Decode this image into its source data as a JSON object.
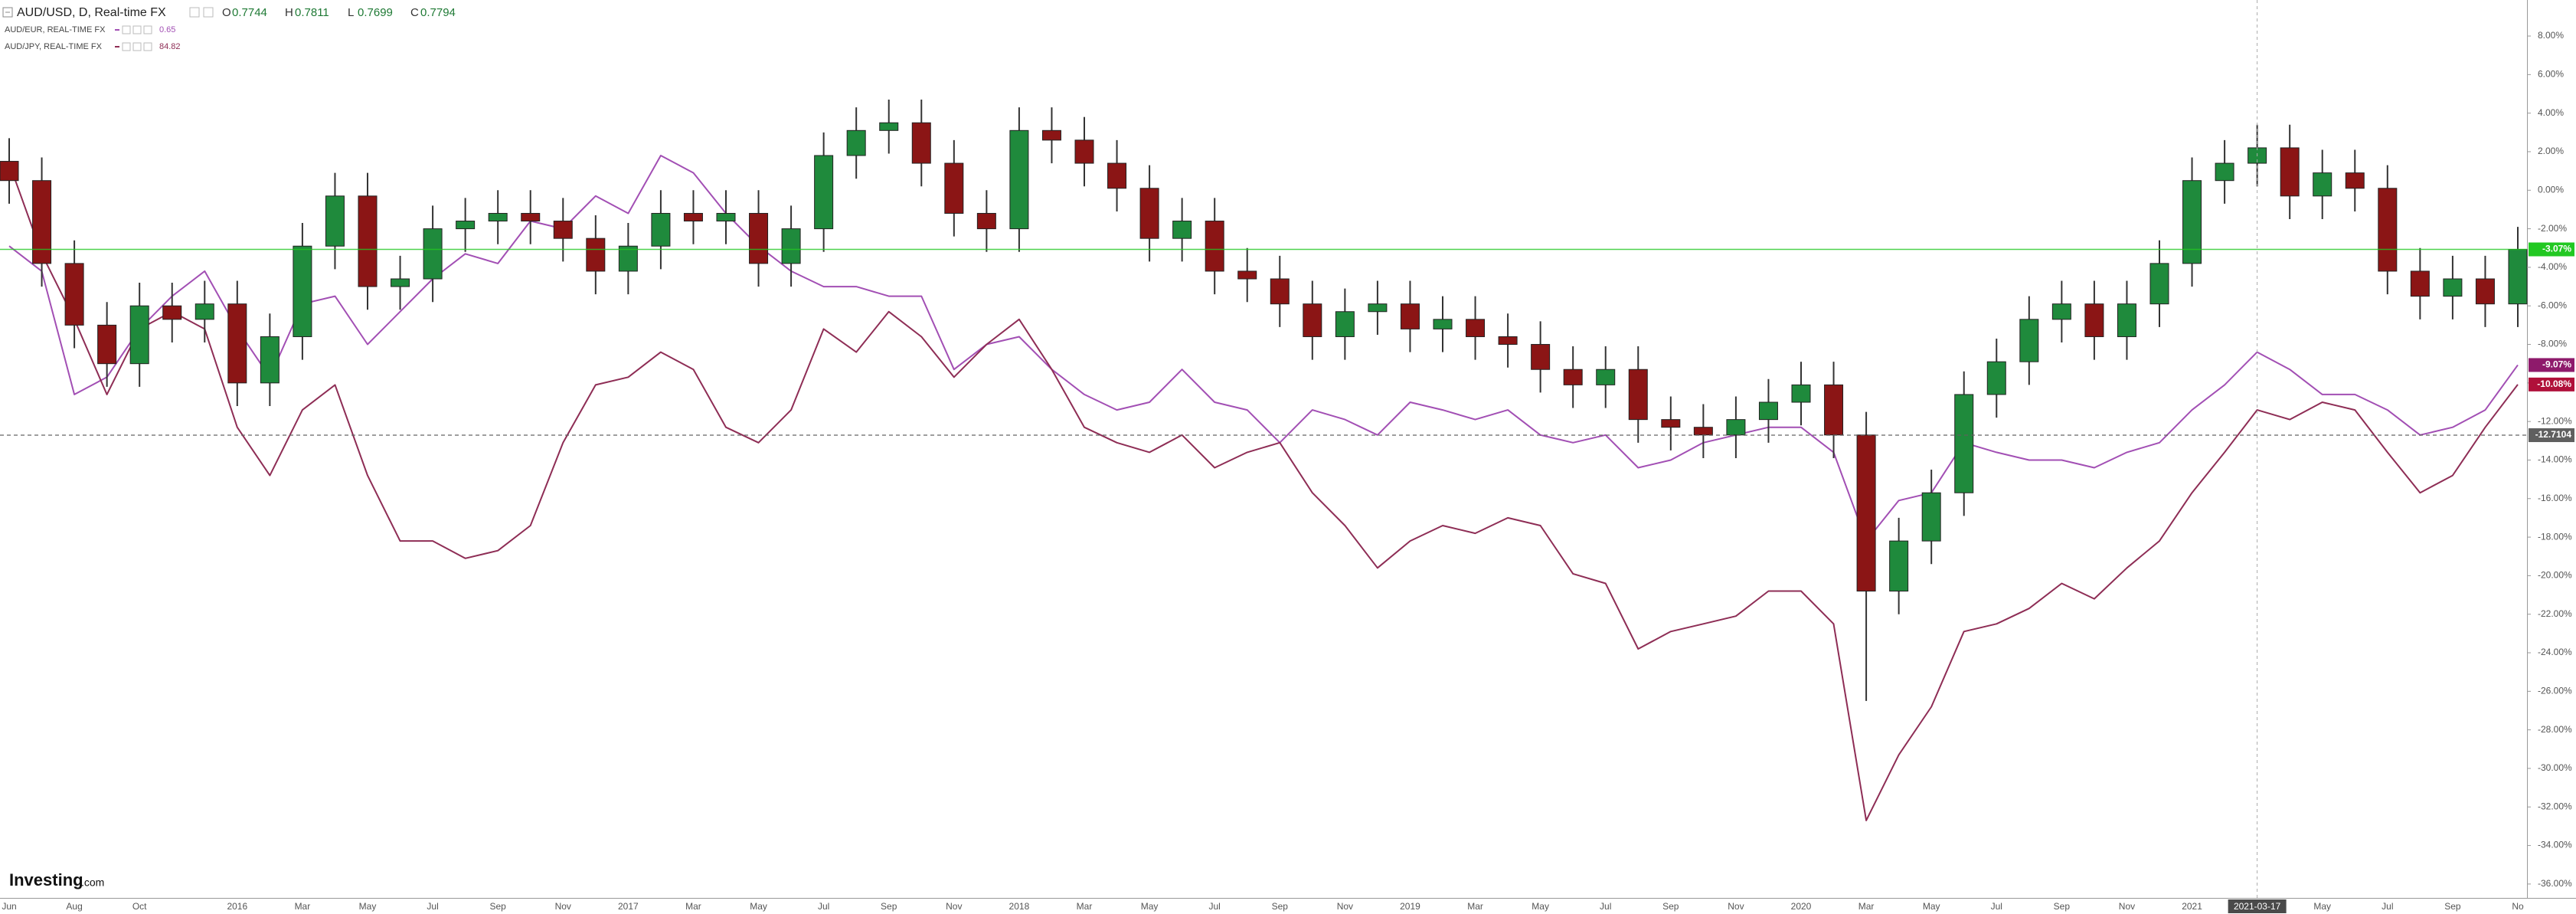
{
  "chart_data": {
    "type": "candlestick",
    "grid": false,
    "ohlc_readout": [
      {
        "label": "O",
        "value": 0.7744
      },
      {
        "label": "H",
        "value": 0.7811
      },
      {
        "label": "L",
        "value": 0.7699
      },
      {
        "label": "C",
        "value": 0.7794
      }
    ],
    "watermark": {
      "brand": "Investing",
      "suffix": ".com"
    },
    "categories": [
      "Jun",
      null,
      "Aug",
      null,
      "Oct",
      null,
      null,
      "2016",
      null,
      "Mar",
      null,
      "May",
      null,
      "Jul",
      null,
      "Sep",
      null,
      "Nov",
      null,
      "2017",
      null,
      "Mar",
      null,
      "May",
      null,
      "Jul",
      null,
      "Sep",
      null,
      "Nov",
      null,
      "2018",
      null,
      "Mar",
      null,
      "May",
      null,
      "Jul",
      null,
      "Sep",
      null,
      "Nov",
      null,
      "2019",
      null,
      "Mar",
      null,
      "May",
      null,
      "Jul",
      null,
      "Sep",
      null,
      "Nov",
      null,
      "2020",
      null,
      "Mar",
      null,
      "May",
      null,
      "Jul",
      null,
      "Sep",
      null,
      "Nov",
      null,
      "2021",
      null,
      "2021-03-17",
      null,
      "May",
      null,
      "Jul",
      null,
      "Sep",
      null,
      "No"
    ],
    "ylim": [
      -36.72,
      9.87
    ],
    "yticks": [
      {
        "value": 8,
        "label": "8.00%"
      },
      {
        "value": 6,
        "label": "6.00%"
      },
      {
        "value": 4,
        "label": "4.00%"
      },
      {
        "value": 2,
        "label": "2.00%"
      },
      {
        "value": 0,
        "label": "0.00%"
      },
      {
        "value": -2,
        "label": "-2.00%"
      },
      {
        "value": -4,
        "label": "-4.00%"
      },
      {
        "value": -6,
        "label": "-6.00%"
      },
      {
        "value": -8,
        "label": "-8.00%"
      },
      {
        "value": -10,
        "label": "-10.00%"
      },
      {
        "value": -12,
        "label": "-12.00%"
      },
      {
        "value": -14,
        "label": "-14.00%"
      },
      {
        "value": -16,
        "label": "-16.00%"
      },
      {
        "value": -18,
        "label": "-18.00%"
      },
      {
        "value": -20,
        "label": "-20.00%"
      },
      {
        "value": -22,
        "label": "-22.00%"
      },
      {
        "value": -24,
        "label": "-24.00%"
      },
      {
        "value": -26,
        "label": "-26.00%"
      },
      {
        "value": -28,
        "label": "-28.00%"
      },
      {
        "value": -30,
        "label": "-30.00%"
      },
      {
        "value": -32,
        "label": "-32.00%"
      },
      {
        "value": -34,
        "label": "-34.00%"
      },
      {
        "value": -36,
        "label": "-36.00%"
      }
    ],
    "price_tags": [
      {
        "value": -3.07,
        "label": "-3.07%",
        "color": "#22c822",
        "line": "solid"
      },
      {
        "value": -9.07,
        "label": "-9.07%",
        "color": "#8e1a6b",
        "line": "none"
      },
      {
        "value": -10.08,
        "label": "-10.08%",
        "color": "#b0103a",
        "line": "none"
      },
      {
        "value": -12.7104,
        "label": "-12.7104",
        "color": "#5f5f5f",
        "line": "dashed"
      }
    ],
    "series": [
      {
        "name": "AUD/USD, D, Real-time FX",
        "type": "candlestick",
        "up_color": "#1f8a3c",
        "down_color": "#8b1515",
        "open": [
          1.5,
          0.5,
          -3.8,
          -7,
          -9,
          -6,
          -6.7,
          -5.9,
          -10,
          -7.6,
          -2.9,
          -0.3,
          -5,
          -4.6,
          -2,
          -1.6,
          -1.2,
          -1.6,
          -2.5,
          -4.2,
          -2.9,
          -1.2,
          -1.6,
          -1.2,
          -3.8,
          -2,
          1.8,
          3.1,
          3.5,
          1.4,
          -1.2,
          -2,
          3.1,
          2.6,
          1.4,
          0.1,
          -2.5,
          -1.6,
          -4.2,
          -4.6,
          -5.9,
          -7.6,
          -6.3,
          -5.9,
          -7.2,
          -6.7,
          -7.6,
          -8,
          -9.3,
          -10.1,
          -9.3,
          -11.9,
          -12.3,
          -12.7,
          -11.9,
          -11,
          -10.1,
          -12.7,
          -20.8,
          -18.2,
          -15.7,
          -10.6,
          -8.9,
          -6.7,
          -5.9,
          -7.6,
          -5.9,
          -3.8,
          0.5,
          1.4,
          2.2,
          -0.3,
          0.9,
          0.1,
          -4.2,
          -5.5,
          -4.6,
          -5.9
        ],
        "high": [
          2.7,
          1.7,
          -2.6,
          -5.8,
          -4.8,
          -4.8,
          -4.7,
          -4.7,
          -6.4,
          -1.7,
          0.9,
          0.9,
          -3.4,
          -0.8,
          -0.4,
          0,
          0,
          -0.4,
          -1.3,
          -1.7,
          0,
          0,
          0,
          0,
          -0.8,
          3,
          4.3,
          4.7,
          4.7,
          2.6,
          0,
          4.3,
          4.3,
          3.8,
          2.6,
          1.3,
          -0.4,
          -0.4,
          -3,
          -3.4,
          -4.7,
          -5.1,
          -4.7,
          -4.7,
          -5.5,
          -5.5,
          -6.4,
          -6.8,
          -8.1,
          -8.1,
          -8.1,
          -10.7,
          -11.1,
          -10.7,
          -9.8,
          -8.9,
          -8.9,
          -11.5,
          -17,
          -14.5,
          -9.4,
          -7.7,
          -5.5,
          -4.7,
          -4.7,
          -4.7,
          -2.6,
          1.7,
          2.6,
          3.4,
          3.4,
          2.1,
          2.1,
          1.3,
          -3,
          -3.4,
          -3.4,
          -1.9
        ],
        "low": [
          -0.7,
          -5,
          -8.2,
          -10.2,
          -10.2,
          -7.9,
          -7.9,
          -11.2,
          -11.2,
          -8.8,
          -4.1,
          -6.2,
          -6.2,
          -5.8,
          -3.2,
          -2.8,
          -2.8,
          -3.7,
          -5.4,
          -5.4,
          -4.1,
          -2.8,
          -2.8,
          -5,
          -5,
          -3.2,
          0.6,
          1.9,
          0.2,
          -2.4,
          -3.2,
          -3.2,
          1.4,
          0.2,
          -1.1,
          -3.7,
          -3.7,
          -5.4,
          -5.8,
          -7.1,
          -8.8,
          -8.8,
          -7.5,
          -8.4,
          -8.4,
          -8.8,
          -9.2,
          -10.5,
          -11.3,
          -11.3,
          -13.1,
          -13.5,
          -13.9,
          -13.9,
          -13.1,
          -12.2,
          -13.9,
          -26.5,
          -22,
          -19.4,
          -16.9,
          -11.8,
          -10.1,
          -7.9,
          -8.8,
          -8.8,
          -7.1,
          -5,
          -0.7,
          0.2,
          -1.5,
          -1.5,
          -1.1,
          -5.4,
          -6.7,
          -6.7,
          -7.1,
          -7.1
        ],
        "close": [
          0.5,
          -3.8,
          -7,
          -9,
          -6,
          -6.7,
          -5.9,
          -10,
          -7.6,
          -2.9,
          -0.3,
          -5,
          -4.6,
          -2,
          -1.6,
          -1.2,
          -1.6,
          -2.5,
          -4.2,
          -2.9,
          -1.2,
          -1.6,
          -1.2,
          -3.8,
          -2,
          1.8,
          3.1,
          3.5,
          1.4,
          -1.2,
          -2,
          3.1,
          2.6,
          1.4,
          0.1,
          -2.5,
          -1.6,
          -4.2,
          -4.6,
          -5.9,
          -7.6,
          -6.3,
          -5.9,
          -7.2,
          -6.7,
          -7.6,
          -8,
          -9.3,
          -10.1,
          -9.3,
          -11.9,
          -12.3,
          -12.7,
          -11.9,
          -11,
          -10.1,
          -12.7,
          -20.8,
          -18.2,
          -15.7,
          -10.6,
          -8.9,
          -6.7,
          -5.9,
          -7.6,
          -5.9,
          -3.8,
          0.5,
          1.4,
          2.2,
          -0.3,
          0.9,
          0.1,
          -4.2,
          -5.5,
          -4.6,
          -5.9,
          -3.07
        ]
      },
      {
        "name": "AUD/EUR, REAL-TIME FX",
        "type": "line",
        "color": "#a24fb4",
        "last": 0.65,
        "values": [
          -2.9,
          -4.2,
          -10.6,
          -9.7,
          -7.2,
          -5.5,
          -4.2,
          -7.2,
          -9.7,
          -5.9,
          -5.5,
          -8,
          -6.3,
          -4.6,
          -3.3,
          -3.8,
          -1.6,
          -2,
          -0.3,
          -1.2,
          1.8,
          0.9,
          -1.2,
          -2.9,
          -4.2,
          -5,
          -5,
          -5.5,
          -5.5,
          -9.3,
          -8,
          -7.6,
          -9.3,
          -10.6,
          -11.4,
          -11,
          -9.3,
          -11,
          -11.4,
          -13.1,
          -11.4,
          -11.9,
          -12.7,
          -11,
          -11.4,
          -11.9,
          -11.4,
          -12.7,
          -13.1,
          -12.7,
          -14.4,
          -14,
          -13.1,
          -12.7,
          -12.3,
          -12.3,
          -13.6,
          -18.2,
          -16.1,
          -15.7,
          -13.1,
          -13.6,
          -14,
          -14,
          -14.4,
          -13.6,
          -13.1,
          -11.4,
          -10.1,
          -8.4,
          -9.3,
          -10.6,
          -10.6,
          -11.4,
          -12.7,
          -12.3,
          -11.4,
          -9.07
        ]
      },
      {
        "name": "AUD/JPY, REAL-TIME FX",
        "type": "line",
        "color": "#8e2d55",
        "last": 84.82,
        "values": [
          1.4,
          -3.3,
          -6.7,
          -10.6,
          -7.2,
          -6.3,
          -7.2,
          -12.3,
          -14.8,
          -11.4,
          -10.1,
          -14.8,
          -18.2,
          -18.2,
          -19.1,
          -18.7,
          -17.4,
          -13.1,
          -10.1,
          -9.7,
          -8.4,
          -9.3,
          -12.3,
          -13.1,
          -11.4,
          -7.2,
          -8.4,
          -6.3,
          -7.6,
          -9.7,
          -8,
          -6.7,
          -9.3,
          -12.3,
          -13.1,
          -13.6,
          -12.7,
          -14.4,
          -13.6,
          -13.1,
          -15.7,
          -17.4,
          -19.6,
          -18.2,
          -17.4,
          -17.8,
          -17,
          -17.4,
          -19.9,
          -20.4,
          -23.8,
          -22.9,
          -22.5,
          -22.1,
          -20.8,
          -20.8,
          -22.5,
          -32.7,
          -29.3,
          -26.8,
          -22.9,
          -22.5,
          -21.7,
          -20.4,
          -21.2,
          -19.6,
          -18.2,
          -15.7,
          -13.6,
          -11.4,
          -11.9,
          -11,
          -11.4,
          -13.6,
          -15.7,
          -14.8,
          -12.3,
          -10.08
        ]
      }
    ]
  }
}
